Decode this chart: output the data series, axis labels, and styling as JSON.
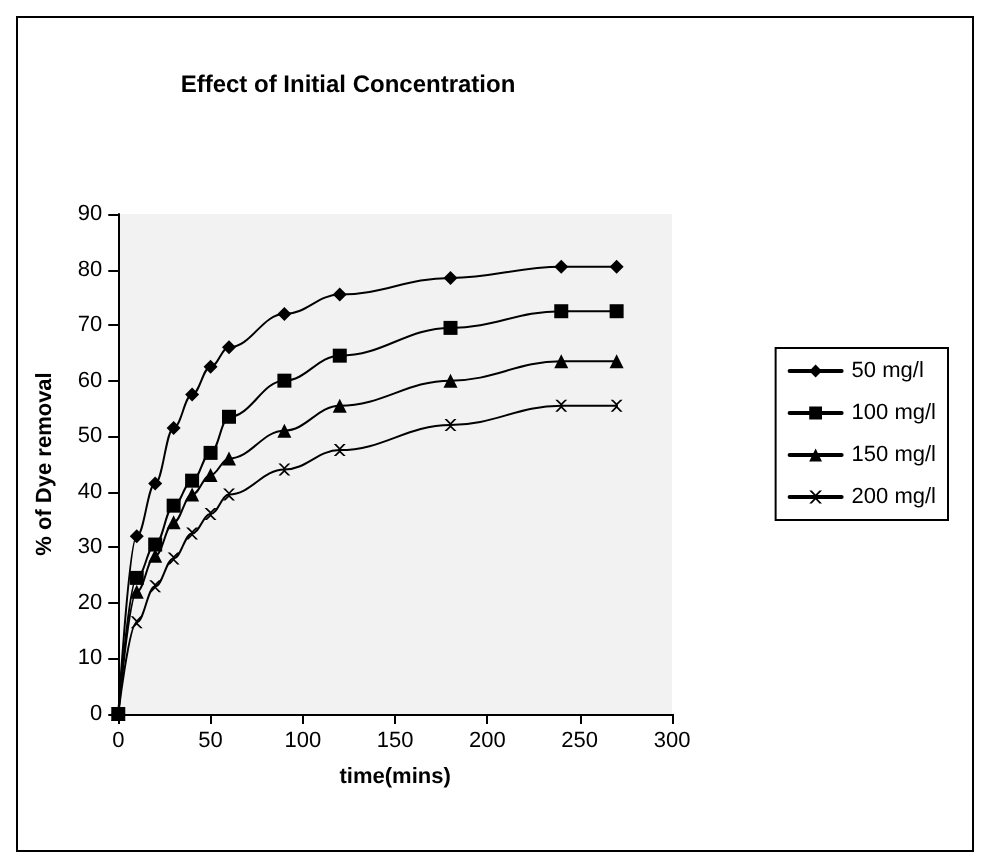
{
  "chart_data": {
    "type": "line",
    "title": "Effect of Initial Concentration",
    "xlabel": "time(mins)",
    "ylabel": "% of Dye removal",
    "x": [
      0,
      10,
      20,
      30,
      40,
      50,
      60,
      90,
      120,
      180,
      240,
      270
    ],
    "series": [
      {
        "name": "50 mg/l",
        "color": "#000000",
        "marker": "diamond",
        "values": [
          0,
          32,
          41.5,
          51.5,
          57.5,
          62.5,
          66,
          72,
          75.5,
          78.5,
          80.5,
          80.5
        ]
      },
      {
        "name": "100 mg/l",
        "color": "#000000",
        "marker": "square",
        "values": [
          0,
          24.5,
          30.5,
          37.5,
          42,
          47,
          53.5,
          60,
          64.5,
          69.5,
          72.5,
          72.5
        ]
      },
      {
        "name": "150 mg/l",
        "color": "#000000",
        "marker": "triangle",
        "values": [
          0,
          22,
          28.5,
          34.5,
          39.5,
          43,
          46,
          51,
          55.5,
          60,
          63.5,
          63.5
        ]
      },
      {
        "name": "200 mg/l",
        "color": "#000000",
        "marker": "cross",
        "values": [
          0,
          16.5,
          23,
          28,
          32.5,
          36,
          39.5,
          44,
          47.5,
          52,
          55.5,
          55.5
        ]
      }
    ],
    "xlim": [
      0,
      300
    ],
    "xticks": [
      0,
      50,
      100,
      150,
      200,
      250,
      300
    ],
    "ylim": [
      0,
      90
    ],
    "yticks": [
      0,
      10,
      20,
      30,
      40,
      50,
      60,
      70,
      80,
      90
    ],
    "grid": false,
    "legend": "right",
    "line_style": "solid"
  }
}
